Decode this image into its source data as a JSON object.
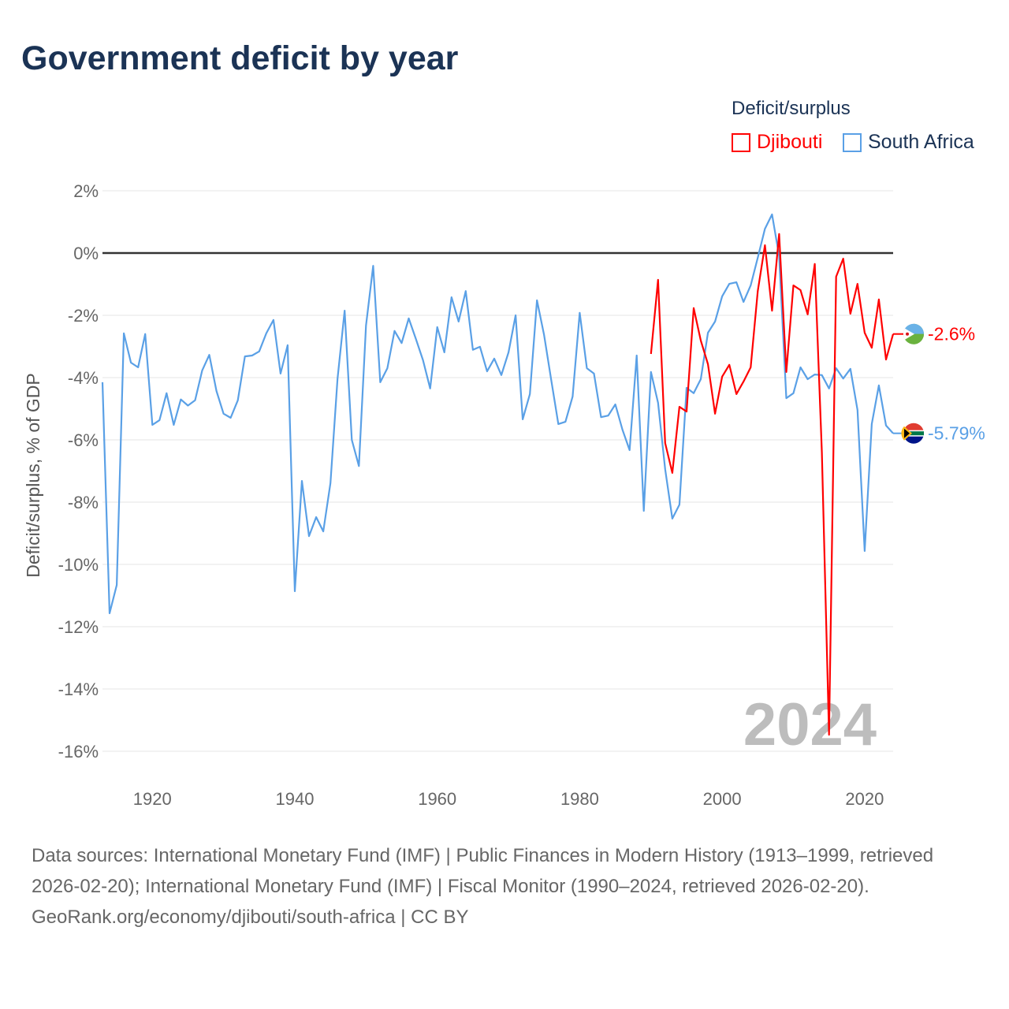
{
  "title": "Government deficit by year",
  "legend": {
    "title": "Deficit/surplus",
    "items": [
      {
        "name": "Djibouti",
        "color": "#ff0000"
      },
      {
        "name": "South Africa",
        "color": "#5aa0e6"
      }
    ]
  },
  "year_watermark": "2024",
  "end_labels": {
    "djibouti": "-2.6%",
    "south_africa": "-5.79%"
  },
  "footer": {
    "sources": "Data sources: International Monetary Fund (IMF) | Public Finances in Modern History (1913–1999, retrieved 2026-02-20); International Monetary Fund (IMF) | Fiscal Monitor (1990–2024, retrieved 2026-02-20).",
    "credit": "GeoRank.org/economy/djibouti/south-africa | CC BY"
  },
  "chart_data": {
    "type": "line",
    "ylabel": "Deficit/surplus, % of GDP",
    "xlabel": "",
    "xlim": [
      1913,
      2024
    ],
    "ylim": [
      -16,
      2
    ],
    "x_ticks": [
      1920,
      1940,
      1960,
      1980,
      2000,
      2020
    ],
    "y_ticks": [
      2,
      0,
      -2,
      -4,
      -6,
      -8,
      -10,
      -12,
      -14,
      -16
    ],
    "y_tick_labels": [
      "2%",
      "0%",
      "-2%",
      "-4%",
      "-6%",
      "-8%",
      "-10%",
      "-12%",
      "-14%",
      "-16%"
    ],
    "grid": true,
    "series": [
      {
        "name": "South Africa",
        "color": "#5aa0e6",
        "start_year": 1913,
        "values": [
          -4.15,
          -11.57,
          -10.66,
          -2.58,
          -3.52,
          -3.67,
          -2.6,
          -5.52,
          -5.37,
          -4.5,
          -5.52,
          -4.7,
          -4.9,
          -4.73,
          -3.77,
          -3.27,
          -4.43,
          -5.16,
          -5.29,
          -4.73,
          -3.32,
          -3.29,
          -3.16,
          -2.58,
          -2.15,
          -3.87,
          -2.96,
          -10.86,
          -7.32,
          -9.09,
          -8.48,
          -8.94,
          -7.39,
          -4.03,
          -1.85,
          -6.0,
          -6.84,
          -2.33,
          -0.41,
          -4.15,
          -3.7,
          -2.5,
          -2.89,
          -2.1,
          -2.76,
          -3.44,
          -4.35,
          -2.38,
          -3.19,
          -1.42,
          -2.2,
          -1.22,
          -3.11,
          -3.01,
          -3.8,
          -3.39,
          -3.92,
          -3.19,
          -2.0,
          -5.34,
          -4.53,
          -1.52,
          -2.63,
          -4.08,
          -5.49,
          -5.42,
          -4.61,
          -1.92,
          -3.7,
          -3.87,
          -5.27,
          -5.22,
          -4.86,
          -5.67,
          -6.33,
          -3.29,
          -8.28,
          -3.82,
          -4.81,
          -6.94,
          -8.53,
          -8.08,
          -4.33,
          -4.5,
          -4.05,
          -2.56,
          -2.2,
          -1.39,
          -0.99,
          -0.94,
          -1.57,
          -1.04,
          -0.15,
          0.78,
          1.24,
          -0.1,
          -4.66,
          -4.5,
          -3.67,
          -4.05,
          -3.9,
          -3.92,
          -4.35,
          -3.7,
          -4.03,
          -3.72,
          -5.04,
          -9.57,
          -5.49,
          -4.25,
          -5.54,
          -5.79
        ]
      },
      {
        "name": "Djibouti",
        "color": "#ff0000",
        "start_year": 1990,
        "values": [
          -3.24,
          -0.86,
          -6.1,
          -7.06,
          -4.94,
          -5.09,
          -1.77,
          -2.81,
          -3.57,
          -5.16,
          -3.97,
          -3.59,
          -4.53,
          -4.13,
          -3.67,
          -1.22,
          0.25,
          -1.85,
          0.61,
          -3.82,
          -1.04,
          -1.19,
          -1.97,
          -0.35,
          -6.4,
          -15.47,
          -0.76,
          -0.18,
          -1.95,
          -0.99,
          -2.56,
          -3.04,
          -1.49,
          -3.42,
          -2.6
        ]
      }
    ]
  }
}
